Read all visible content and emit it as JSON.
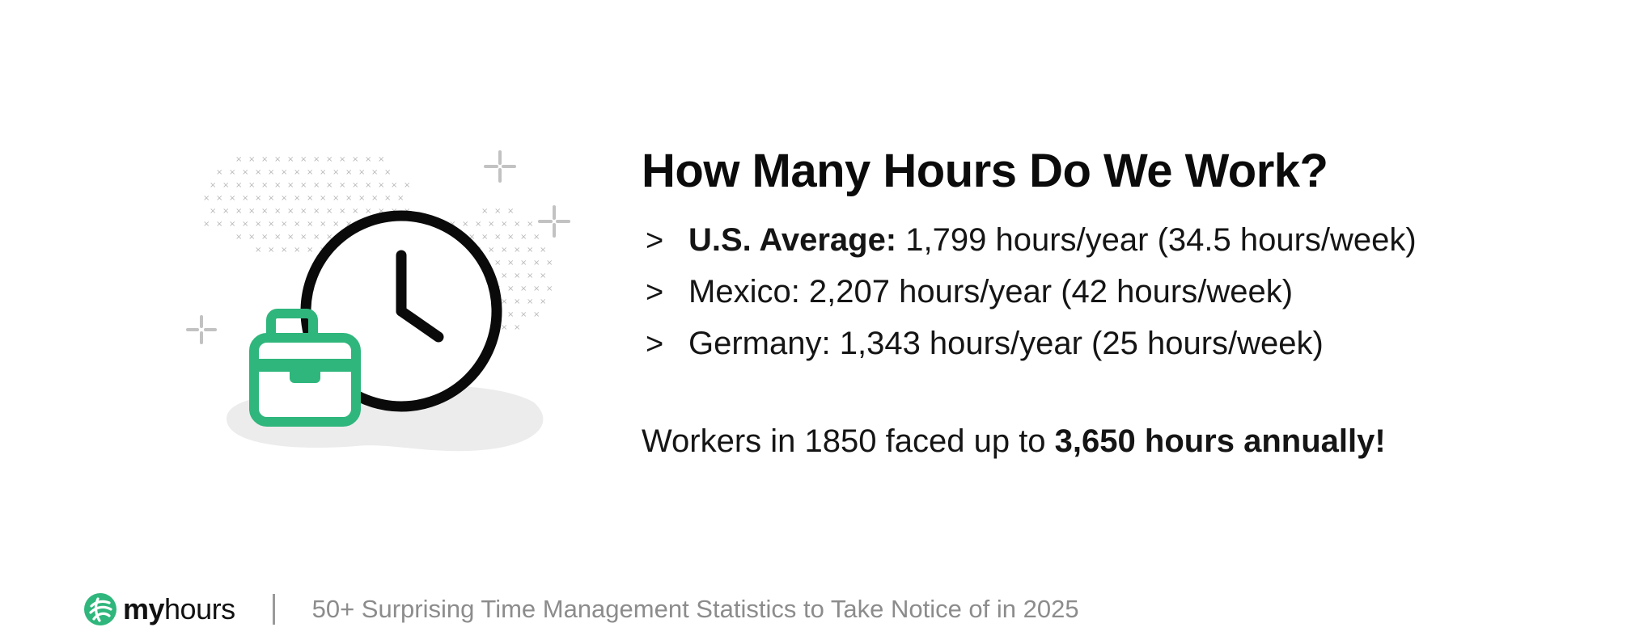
{
  "heading": {
    "title": "How Many Hours Do We Work?"
  },
  "stats": [
    {
      "marker": ">",
      "label_bold": "U.S. Average:",
      "text": " 1,799 hours/year (34.5 hours/week)"
    },
    {
      "marker": ">",
      "label_bold": "",
      "text": "Mexico: 2,207 hours/year (42 hours/week)"
    },
    {
      "marker": ">",
      "label_bold": "",
      "text": "Germany: 1,343 hours/year (25 hours/week)"
    }
  ],
  "note": {
    "prefix": "Workers in 1850 faced up to ",
    "highlight": "3,650 hours annually!"
  },
  "footer": {
    "logo_bold": "my",
    "logo_light": "hours",
    "divider": "|",
    "caption": "50+ Surprising Time Management Statistics to Take Notice of in 2025"
  },
  "colors": {
    "brand_green": "#2fb67c",
    "text_dark": "#111111",
    "caption_gray": "#8c8c8c"
  },
  "icons": {
    "illustration": [
      "clock-icon",
      "briefcase-icon",
      "sparkle-icon"
    ],
    "logo": "myhours-logo-icon"
  }
}
